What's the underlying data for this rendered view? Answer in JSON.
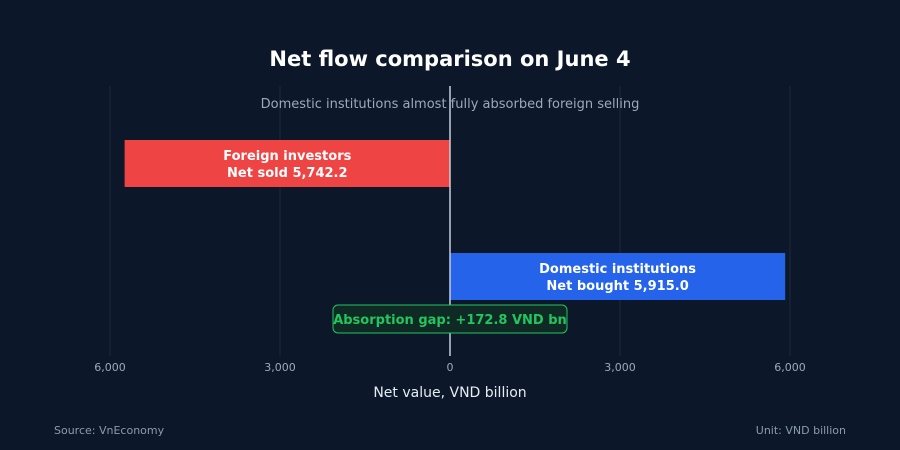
{
  "footer": {
    "source": "Source: VnEconomy",
    "unit": "Unit: VND billion"
  },
  "chart_data": {
    "type": "bar",
    "orientation": "horizontal",
    "title": "Net flow comparison on June 4",
    "subtitle": "Domestic institutions almost fully absorbed foreign selling",
    "xlabel": "Net value, VND billion",
    "xlim": [
      -6000,
      6000
    ],
    "x_ticks": [
      -6000,
      -3000,
      0,
      3000,
      6000
    ],
    "x_tick_labels": [
      "6,000",
      "3,000",
      "0",
      "3,000",
      "6,000"
    ],
    "grid": true,
    "categories": [
      "Foreign investors",
      "Domestic institutions"
    ],
    "values": [
      -5742.2,
      5915.0
    ],
    "bar_labels": [
      "Net sold 5,742.2",
      "Net bought 5,915.0"
    ],
    "colors": [
      "#ef4444",
      "#2563eb"
    ],
    "annotation": {
      "text": "Absorption gap: +172.8 VND bn",
      "value": 172.8,
      "color": "#22c55e"
    }
  }
}
